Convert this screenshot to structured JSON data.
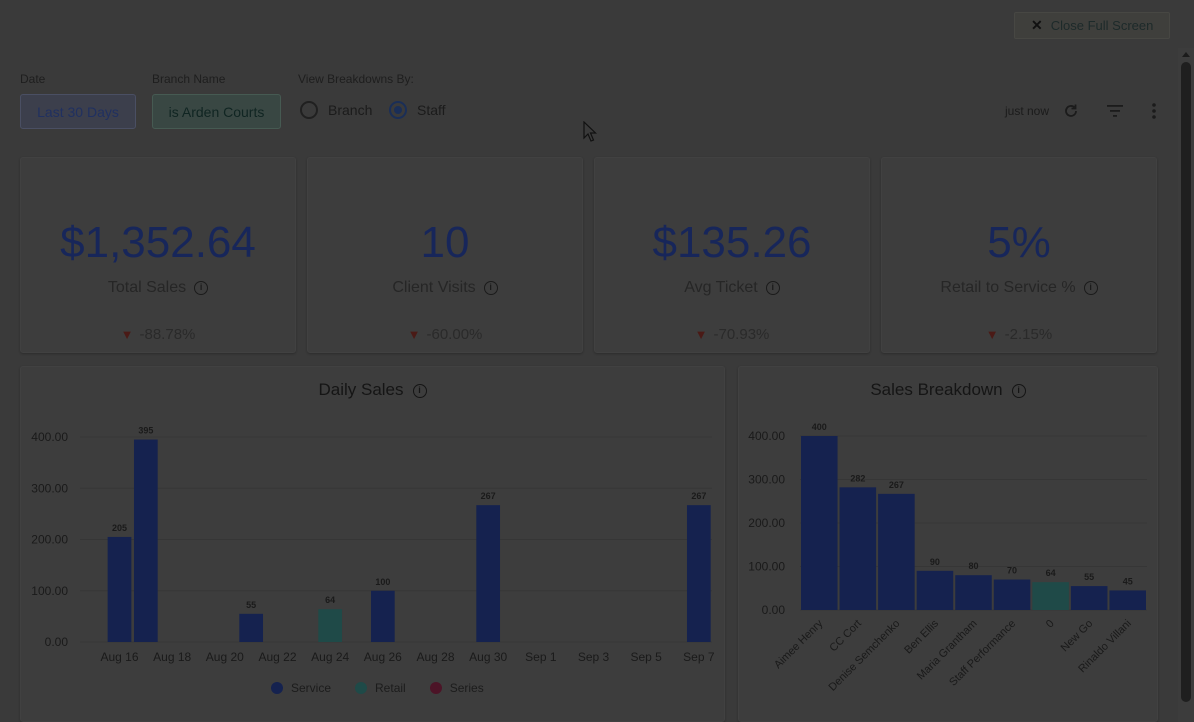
{
  "toolbar": {
    "close_label": "Close Full Screen",
    "refresh_time": "just now",
    "refresh_icon": "refresh-icon",
    "filter_icon": "filter-icon",
    "menu_icon": "more-vert-icon"
  },
  "filters": {
    "date_label": "Date",
    "date_value": "Last 30 Days",
    "branch_label": "Branch Name",
    "branch_value": "is Arden Courts",
    "breakdown_label": "View Breakdowns By:",
    "options": [
      "Branch",
      "Staff"
    ],
    "selected": "Staff"
  },
  "kpis": [
    {
      "value": "$1,352.64",
      "label": "Total Sales",
      "change": "-88.78%"
    },
    {
      "value": "10",
      "label": "Client Visits",
      "change": "-60.00%"
    },
    {
      "value": "$135.26",
      "label": "Avg Ticket",
      "change": "-70.93%"
    },
    {
      "value": "5%",
      "label": "Retail to Service %",
      "change": "-2.15%"
    }
  ],
  "colors": {
    "service": "#15224f",
    "retail": "#1f4a48",
    "series": "#4c1427",
    "decline": "#4a1a16"
  },
  "chart_data": [
    {
      "type": "bar",
      "title": "Daily Sales",
      "x_ticks": [
        "Aug 16",
        "Aug 18",
        "Aug 20",
        "Aug 22",
        "Aug 24",
        "Aug 26",
        "Aug 28",
        "Aug 30",
        "Sep 1",
        "Sep 3",
        "Sep 5",
        "Sep 7"
      ],
      "y_ticks": [
        "0.00",
        "100.00",
        "200.00",
        "300.00",
        "400.00"
      ],
      "ylim": [
        0,
        400
      ],
      "bars": [
        {
          "date": "Aug 16",
          "value": 205,
          "label": "205",
          "series": "Service"
        },
        {
          "date": "Aug 17",
          "value": 395,
          "label": "395",
          "series": "Service"
        },
        {
          "date": "Aug 21",
          "value": 55,
          "label": "55",
          "series": "Service"
        },
        {
          "date": "Aug 24",
          "value": 64,
          "label": "64",
          "series": "Retail"
        },
        {
          "date": "Aug 26",
          "value": 100,
          "label": "100",
          "series": "Service"
        },
        {
          "date": "Aug 30",
          "value": 267,
          "label": "267",
          "series": "Service"
        },
        {
          "date": "Sep 7",
          "value": 267,
          "label": "267",
          "series": "Service"
        }
      ],
      "legend": [
        "Service",
        "Retail",
        "Series"
      ],
      "legend_position": "bottom",
      "grid": true
    },
    {
      "type": "bar",
      "title": "Sales Breakdown",
      "categories": [
        "Aimee Henry",
        "CC Cort",
        "Denise Semchenko",
        "Ben Ellis",
        "Maria Grantham",
        "Staff Performance",
        "0",
        "New Go",
        "Rinaldo Villani"
      ],
      "values": [
        400,
        282,
        267,
        90,
        80,
        70,
        64,
        55,
        45
      ],
      "series_per_bar": [
        "Service",
        "Service",
        "Service",
        "Service",
        "Service",
        "Service",
        "Retail",
        "Service",
        "Service"
      ],
      "y_ticks": [
        "0.00",
        "100.00",
        "200.00",
        "300.00",
        "400.00"
      ],
      "ylim": [
        0,
        400
      ],
      "grid": true
    }
  ]
}
